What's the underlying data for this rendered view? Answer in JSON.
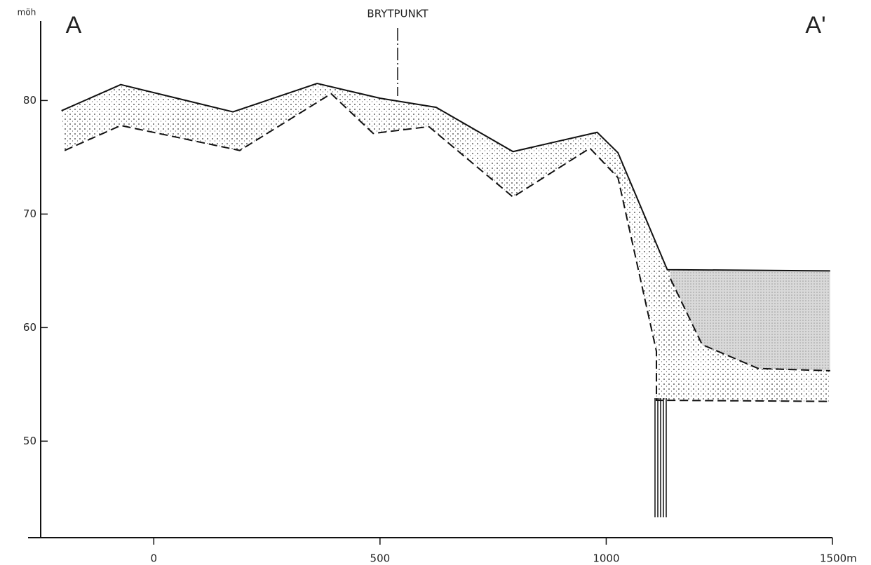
{
  "chart_data": {
    "type": "line",
    "title": "BRYTPUNKT",
    "title_x": 539,
    "y_label": "möh",
    "start_label": "A",
    "end_label": "A'",
    "xlim": [
      -250,
      1500
    ],
    "ylim": [
      41.5,
      87
    ],
    "xticks": [
      0,
      500,
      1000,
      {
        "value": 1500,
        "label": "1500m"
      }
    ],
    "yticks": [
      50,
      60,
      70,
      80
    ],
    "series": [
      {
        "style": "solid",
        "color": "#111",
        "x": [
          -204,
          -73,
          175,
          361,
          500,
          624,
          794,
          980,
          1026,
          1135,
          1495
        ],
        "values": [
          79.1,
          81.4,
          79.0,
          81.5,
          80.2,
          79.4,
          75.5,
          77.2,
          75.4,
          65.1,
          65.0
        ]
      },
      {
        "style": "dashed",
        "color": "#111",
        "x": [
          -197,
          -73,
          190,
          392,
          485,
          608,
          794,
          964,
          1026,
          1111,
          1111,
          1495
        ],
        "values": [
          75.6,
          77.8,
          75.6,
          80.6,
          77.1,
          77.7,
          71.5,
          75.8,
          73.2,
          57.9,
          53.6,
          53.5
        ]
      },
      {
        "style": "dashed",
        "color": "#111",
        "x": [
          1142,
          1212,
          1336,
          1495
        ],
        "values": [
          64.3,
          58.5,
          56.4,
          56.2
        ]
      }
    ]
  }
}
